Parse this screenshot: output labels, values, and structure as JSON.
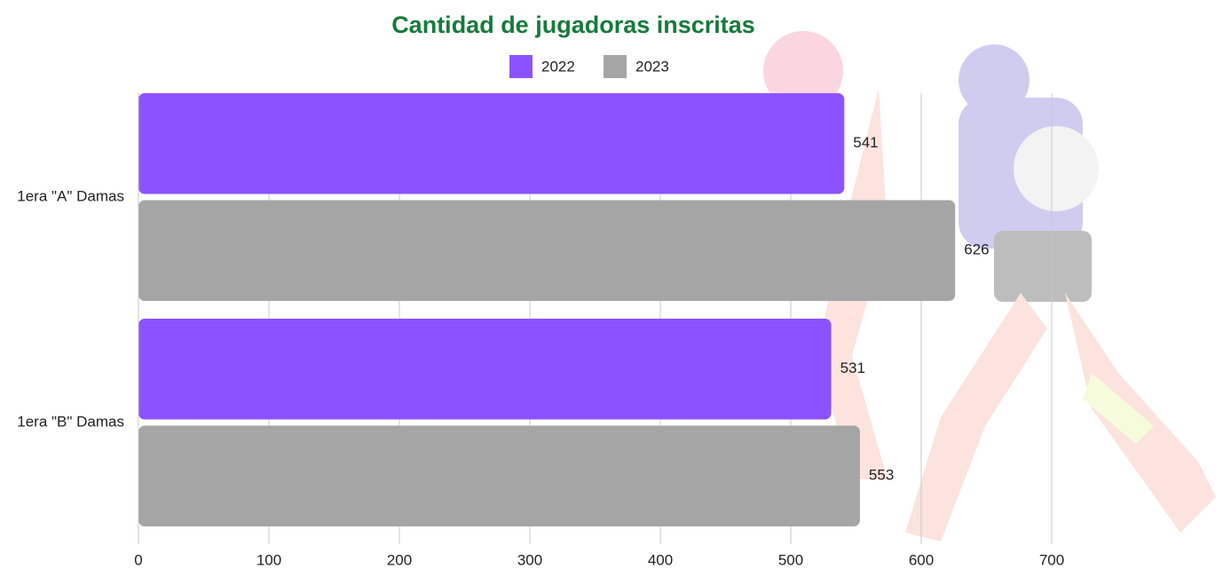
{
  "chart_data": {
    "type": "bar",
    "orientation": "horizontal",
    "title": "Cantidad de jugadoras inscritas",
    "categories": [
      "1era \"A\" Damas",
      "1era \"B\" Damas"
    ],
    "series": [
      {
        "name": "2022",
        "color": "#8c52ff",
        "values": [
          541,
          531
        ]
      },
      {
        "name": "2023",
        "color": "#a6a5a5",
        "values": [
          626,
          553
        ]
      }
    ],
    "xlim": [
      0,
      800
    ],
    "xticks": [
      0,
      100,
      200,
      300,
      400,
      500,
      600,
      700
    ],
    "grid": true
  }
}
